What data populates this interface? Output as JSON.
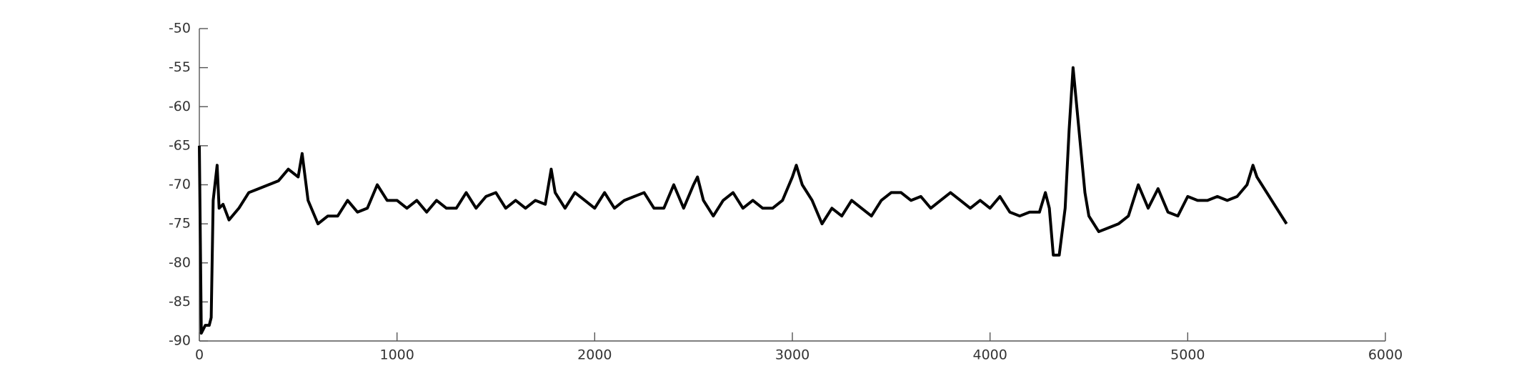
{
  "chart_data": {
    "type": "line",
    "x": [
      0,
      10,
      30,
      50,
      60,
      70,
      90,
      100,
      120,
      150,
      200,
      250,
      300,
      350,
      400,
      450,
      500,
      520,
      550,
      600,
      650,
      700,
      750,
      800,
      850,
      900,
      950,
      1000,
      1050,
      1100,
      1150,
      1200,
      1250,
      1300,
      1350,
      1400,
      1450,
      1500,
      1550,
      1600,
      1650,
      1700,
      1750,
      1780,
      1800,
      1850,
      1900,
      1950,
      2000,
      2050,
      2100,
      2150,
      2200,
      2250,
      2300,
      2350,
      2400,
      2450,
      2500,
      2520,
      2550,
      2600,
      2650,
      2700,
      2750,
      2800,
      2850,
      2900,
      2950,
      3000,
      3020,
      3050,
      3100,
      3150,
      3200,
      3250,
      3300,
      3350,
      3400,
      3450,
      3500,
      3550,
      3600,
      3650,
      3700,
      3750,
      3800,
      3850,
      3900,
      3950,
      4000,
      4050,
      4100,
      4150,
      4200,
      4250,
      4280,
      4300,
      4320,
      4350,
      4380,
      4400,
      4420,
      4450,
      4480,
      4500,
      4550,
      4600,
      4650,
      4700,
      4750,
      4800,
      4850,
      4900,
      4950,
      5000,
      5050,
      5100,
      5150,
      5200,
      5250,
      5300,
      5330,
      5350,
      5400,
      5450,
      5500
    ],
    "series": [
      {
        "color": "#000000",
        "values": [
          -65,
          -89,
          -88,
          -88,
          -87,
          -72,
          -67.5,
          -73,
          -72.5,
          -74.5,
          -73,
          -71,
          -70.5,
          -70,
          -69.5,
          -68,
          -69,
          -66,
          -72,
          -75,
          -74,
          -74,
          -72,
          -73.5,
          -73,
          -70,
          -72,
          -72,
          -73,
          -72,
          -73.5,
          -72,
          -73,
          -73,
          -71,
          -73,
          -71.5,
          -71,
          -73,
          -72,
          -73,
          -72,
          -72.5,
          -68,
          -71,
          -73,
          -71,
          -72,
          -73,
          -71,
          -73,
          -72,
          -71.5,
          -71,
          -73,
          -73,
          -70,
          -73,
          -70,
          -69,
          -72,
          -74,
          -72,
          -71,
          -73,
          -72,
          -73,
          -73,
          -72,
          -69,
          -67.5,
          -70,
          -72,
          -75,
          -73,
          -74,
          -72,
          -73,
          -74,
          -72,
          -71,
          -71,
          -72,
          -71.5,
          -73,
          -72,
          -71,
          -72,
          -73,
          -72,
          -73,
          -71.5,
          -73.5,
          -74,
          -73.5,
          -73.5,
          -71,
          -73,
          -79,
          -79,
          -73,
          -63,
          -55,
          -63,
          -71,
          -74,
          -76,
          -75.5,
          -75,
          -74,
          -70,
          -73,
          -70.5,
          -73.5,
          -74,
          -71.5,
          -72,
          -72,
          -71.5,
          -72,
          -71.5,
          -70,
          -67.5,
          -69,
          -71,
          -73,
          -75
        ]
      }
    ],
    "xlim": [
      0,
      6000
    ],
    "xticks": [
      0,
      1000,
      2000,
      3000,
      4000,
      5000,
      6000
    ],
    "ylim": [
      -90,
      -50
    ],
    "yticks": [
      -50,
      -55,
      -60,
      -65,
      -70,
      -75,
      -80,
      -85,
      -90
    ]
  }
}
